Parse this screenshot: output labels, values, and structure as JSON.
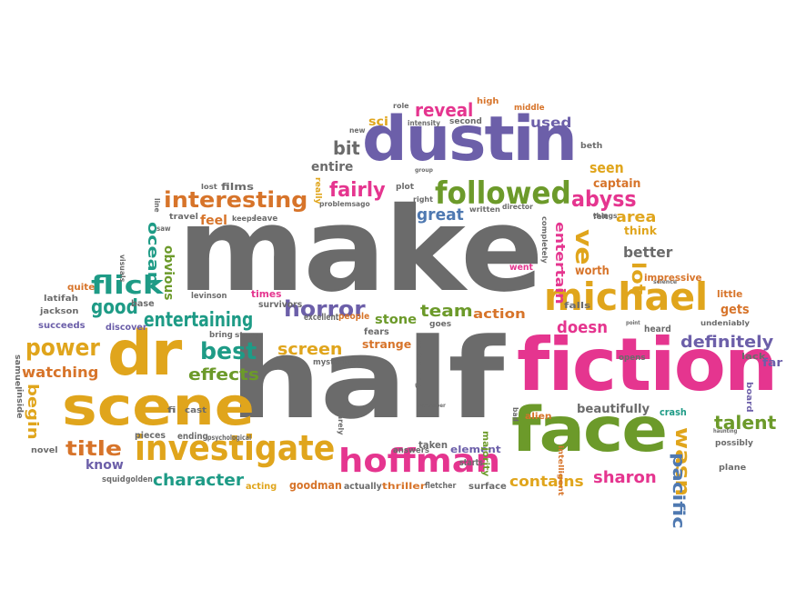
{
  "colors": {
    "gray": "#6b6b6b",
    "purple": "#6c5fa9",
    "green": "#6c9a2a",
    "gold": "#e0a51c",
    "pink": "#e5358f",
    "teal": "#1e9b86",
    "orange": "#d7742a",
    "blue": "#4f79b1"
  },
  "words": [
    {
      "text": "make",
      "color": "gray"
    },
    {
      "text": "half",
      "color": "gray"
    },
    {
      "text": "dustin",
      "color": "purple"
    },
    {
      "text": "fiction",
      "color": "pink"
    },
    {
      "text": "face",
      "color": "green"
    },
    {
      "text": "scene",
      "color": "gold"
    },
    {
      "text": "dr",
      "color": "gold"
    },
    {
      "text": "michael",
      "color": "gold"
    },
    {
      "text": "investigate",
      "color": "gold"
    },
    {
      "text": "hoffman",
      "color": "pink"
    },
    {
      "text": "followed",
      "color": "green"
    },
    {
      "text": "interesting",
      "color": "orange"
    },
    {
      "text": "entertaining",
      "color": "teal"
    },
    {
      "text": "flick",
      "color": "teal"
    },
    {
      "text": "power",
      "color": "gold"
    },
    {
      "text": "watching",
      "color": "orange"
    },
    {
      "text": "effects",
      "color": "green"
    },
    {
      "text": "best",
      "color": "teal"
    },
    {
      "text": "horror",
      "color": "purple"
    },
    {
      "text": "screen",
      "color": "gold"
    },
    {
      "text": "title",
      "color": "orange"
    },
    {
      "text": "character",
      "color": "teal"
    },
    {
      "text": "definitely",
      "color": "purple"
    },
    {
      "text": "talent",
      "color": "green"
    },
    {
      "text": "wasn",
      "color": "gold"
    },
    {
      "text": "contains",
      "color": "gold"
    },
    {
      "text": "sharon",
      "color": "pink"
    },
    {
      "text": "pacific",
      "color": "blue"
    },
    {
      "text": "abyss",
      "color": "pink"
    },
    {
      "text": "team",
      "color": "green"
    },
    {
      "text": "reveal",
      "color": "pink"
    },
    {
      "text": "fairly",
      "color": "pink"
    },
    {
      "text": "entire",
      "color": "gray"
    },
    {
      "text": "great",
      "color": "blue"
    },
    {
      "text": "area",
      "color": "gold"
    },
    {
      "text": "better",
      "color": "gray"
    },
    {
      "text": "seen",
      "color": "gold"
    },
    {
      "text": "doesn",
      "color": "pink"
    },
    {
      "text": "good",
      "color": "teal"
    },
    {
      "text": "ocean",
      "color": "teal"
    },
    {
      "text": "obvious",
      "color": "green"
    },
    {
      "text": "begin",
      "color": "gold"
    },
    {
      "text": "ve",
      "color": "gold"
    },
    {
      "text": "lot",
      "color": "gold"
    },
    {
      "text": "entertain",
      "color": "pink"
    },
    {
      "text": "action",
      "color": "orange"
    },
    {
      "text": "stone",
      "color": "green"
    },
    {
      "text": "strange",
      "color": "orange"
    },
    {
      "text": "bit",
      "color": "gray"
    },
    {
      "text": "sci",
      "color": "gold"
    },
    {
      "text": "used",
      "color": "purple"
    },
    {
      "text": "captain",
      "color": "orange"
    },
    {
      "text": "think",
      "color": "gold"
    },
    {
      "text": "gets",
      "color": "orange"
    },
    {
      "text": "beautifully",
      "color": "gray"
    },
    {
      "text": "know",
      "color": "purple"
    },
    {
      "text": "feel",
      "color": "orange"
    },
    {
      "text": "films",
      "color": "gray"
    },
    {
      "text": "worth",
      "color": "orange"
    },
    {
      "text": "impressive",
      "color": "orange"
    },
    {
      "text": "alien",
      "color": "orange"
    },
    {
      "text": "crash",
      "color": "teal"
    },
    {
      "text": "element",
      "color": "purple"
    },
    {
      "text": "taken",
      "color": "gray"
    },
    {
      "text": "starts",
      "color": "gray"
    },
    {
      "text": "answers",
      "color": "gray"
    },
    {
      "text": "surface",
      "color": "gray"
    },
    {
      "text": "thriller",
      "color": "orange"
    },
    {
      "text": "fletcher",
      "color": "gray"
    },
    {
      "text": "actually",
      "color": "gray"
    },
    {
      "text": "goodman",
      "color": "orange"
    },
    {
      "text": "acting",
      "color": "gold"
    },
    {
      "text": "squid",
      "color": "gray"
    },
    {
      "text": "golden",
      "color": "gray"
    },
    {
      "text": "pieces",
      "color": "gray"
    },
    {
      "text": "ending",
      "color": "gray"
    },
    {
      "text": "psychological",
      "color": "gray"
    },
    {
      "text": "fi",
      "color": "gray"
    },
    {
      "text": "cast",
      "color": "gray"
    },
    {
      "text": "novel",
      "color": "gray"
    },
    {
      "text": "inside",
      "color": "gray"
    },
    {
      "text": "samuel",
      "color": "gray"
    },
    {
      "text": "succeeds",
      "color": "purple"
    },
    {
      "text": "jackson",
      "color": "gray"
    },
    {
      "text": "latifah",
      "color": "gray"
    },
    {
      "text": "quite",
      "color": "orange"
    },
    {
      "text": "base",
      "color": "gray"
    },
    {
      "text": "discover",
      "color": "purple"
    },
    {
      "text": "levinson",
      "color": "gray"
    },
    {
      "text": "bring",
      "color": "gray"
    },
    {
      "text": "story",
      "color": "gray"
    },
    {
      "text": "survivors",
      "color": "gray"
    },
    {
      "text": "times",
      "color": "pink"
    },
    {
      "text": "excellent",
      "color": "gray"
    },
    {
      "text": "people",
      "color": "orange"
    },
    {
      "text": "mysterious",
      "color": "gray"
    },
    {
      "text": "fears",
      "color": "gray"
    },
    {
      "text": "goes",
      "color": "gray"
    },
    {
      "text": "indicating",
      "color": "gray"
    },
    {
      "text": "majority",
      "color": "green"
    },
    {
      "text": "bad",
      "color": "gray"
    },
    {
      "text": "intelligent",
      "color": "orange"
    },
    {
      "text": "went",
      "color": "pink"
    },
    {
      "text": "completely",
      "color": "gray"
    },
    {
      "text": "falls",
      "color": "gray"
    },
    {
      "text": "opens",
      "color": "gray"
    },
    {
      "text": "heard",
      "color": "gray"
    },
    {
      "text": "point",
      "color": "gray"
    },
    {
      "text": "undeniably",
      "color": "gray"
    },
    {
      "text": "little",
      "color": "orange"
    },
    {
      "text": "science",
      "color": "gray"
    },
    {
      "text": "lack",
      "color": "gray"
    },
    {
      "text": "far",
      "color": "purple"
    },
    {
      "text": "board",
      "color": "purple"
    },
    {
      "text": "possibly",
      "color": "gray"
    },
    {
      "text": "plane",
      "color": "gray"
    },
    {
      "text": "haunting",
      "color": "gray"
    },
    {
      "text": "travel",
      "color": "gray"
    },
    {
      "text": "keeps",
      "color": "gray"
    },
    {
      "text": "leave",
      "color": "gray"
    },
    {
      "text": "problems",
      "color": "gray"
    },
    {
      "text": "ago",
      "color": "gray"
    },
    {
      "text": "written",
      "color": "gray"
    },
    {
      "text": "director",
      "color": "gray"
    },
    {
      "text": "things",
      "color": "gray"
    },
    {
      "text": "felt",
      "color": "gray"
    },
    {
      "text": "saw",
      "color": "gray"
    },
    {
      "text": "visuals",
      "color": "gray"
    },
    {
      "text": "line",
      "color": "gray"
    },
    {
      "text": "lost",
      "color": "gray"
    },
    {
      "text": "really",
      "color": "gold"
    },
    {
      "text": "plot",
      "color": "gray"
    },
    {
      "text": "right",
      "color": "gray"
    },
    {
      "text": "group",
      "color": "gray"
    },
    {
      "text": "new",
      "color": "gray"
    },
    {
      "text": "role",
      "color": "gray"
    },
    {
      "text": "intensity",
      "color": "gray"
    },
    {
      "text": "second",
      "color": "gray"
    },
    {
      "text": "high",
      "color": "orange"
    },
    {
      "text": "middle",
      "color": "orange"
    },
    {
      "text": "beth",
      "color": "gray"
    },
    {
      "text": "schreiber",
      "color": "gray"
    },
    {
      "text": "barely",
      "color": "gray"
    }
  ]
}
